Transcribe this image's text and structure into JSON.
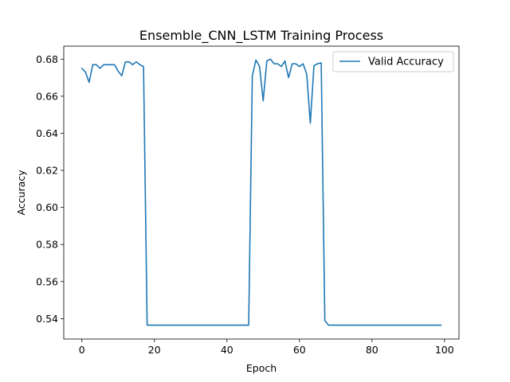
{
  "chart_data": {
    "type": "line",
    "title": "Ensemble_CNN_LSTM Training Process",
    "xlabel": "Epoch",
    "ylabel": "Accuracy",
    "xlim": [
      -5,
      104
    ],
    "ylim": [
      0.529,
      0.687
    ],
    "x_ticks": [
      0,
      20,
      40,
      60,
      80,
      100
    ],
    "y_ticks": [
      0.54,
      0.56,
      0.58,
      0.6,
      0.62,
      0.64,
      0.66,
      0.68
    ],
    "x_tick_labels": [
      "0",
      "20",
      "40",
      "60",
      "80",
      "100"
    ],
    "y_tick_labels": [
      "0.54",
      "0.56",
      "0.58",
      "0.60",
      "0.62",
      "0.64",
      "0.66",
      "0.68"
    ],
    "grid": false,
    "legend_position": "top-right",
    "series": [
      {
        "name": "Valid Accuracy",
        "color": "#1f77b4",
        "x": [
          0,
          1,
          2,
          3,
          4,
          5,
          6,
          7,
          8,
          9,
          10,
          11,
          12,
          13,
          14,
          15,
          16,
          17,
          18,
          19,
          20,
          21,
          22,
          23,
          24,
          25,
          26,
          27,
          28,
          29,
          30,
          31,
          32,
          33,
          34,
          35,
          36,
          37,
          38,
          39,
          40,
          41,
          42,
          43,
          44,
          45,
          46,
          47,
          48,
          49,
          50,
          51,
          52,
          53,
          54,
          55,
          56,
          57,
          58,
          59,
          60,
          61,
          62,
          63,
          64,
          65,
          66,
          67,
          68,
          69,
          70,
          71,
          72,
          73,
          74,
          75,
          76,
          77,
          78,
          79,
          80,
          81,
          82,
          83,
          84,
          85,
          86,
          87,
          88,
          89,
          90,
          91,
          92,
          93,
          94,
          95,
          96,
          97,
          98,
          99
        ],
        "values": [
          0.675,
          0.673,
          0.6675,
          0.677,
          0.677,
          0.675,
          0.677,
          0.677,
          0.677,
          0.677,
          0.6735,
          0.671,
          0.6785,
          0.6785,
          0.677,
          0.6785,
          0.677,
          0.676,
          0.5365,
          0.5365,
          0.5365,
          0.5365,
          0.5365,
          0.5365,
          0.5365,
          0.5365,
          0.5365,
          0.5365,
          0.5365,
          0.5365,
          0.5365,
          0.5365,
          0.5365,
          0.5365,
          0.5365,
          0.5365,
          0.5365,
          0.5365,
          0.5365,
          0.5365,
          0.5365,
          0.5365,
          0.5365,
          0.5365,
          0.5365,
          0.5365,
          0.5365,
          0.671,
          0.6795,
          0.676,
          0.6575,
          0.679,
          0.68,
          0.6775,
          0.6775,
          0.676,
          0.679,
          0.67,
          0.6775,
          0.6775,
          0.676,
          0.6775,
          0.672,
          0.6455,
          0.6765,
          0.6775,
          0.678,
          0.539,
          0.5365,
          0.5365,
          0.5365,
          0.5365,
          0.5365,
          0.5365,
          0.5365,
          0.5365,
          0.5365,
          0.5365,
          0.5365,
          0.5365,
          0.5365,
          0.5365,
          0.5365,
          0.5365,
          0.5365,
          0.5365,
          0.5365,
          0.5365,
          0.5365,
          0.5365,
          0.5365,
          0.5365,
          0.5365,
          0.5365,
          0.5365,
          0.5365,
          0.5365,
          0.5365,
          0.5365,
          0.5365
        ]
      }
    ]
  }
}
